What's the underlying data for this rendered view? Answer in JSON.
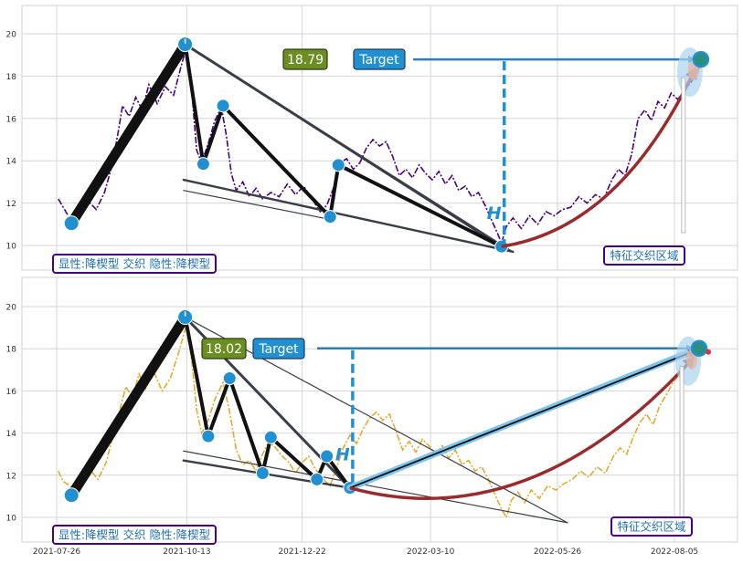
{
  "chart_data": [
    {
      "type": "line",
      "panel": "top",
      "title": "",
      "xlabel": "",
      "ylabel": "",
      "ylim": [
        9,
        21.2
      ],
      "yticks": [
        10,
        12,
        14,
        16,
        18,
        20
      ],
      "grid": true,
      "x_axis_labels_shown": false,
      "series": [
        {
          "style": "dash-dot",
          "color": "#4b0082",
          "points": [
            [
              "2021-07-27",
              12.2
            ],
            [
              "2021-07-30",
              11.8
            ],
            [
              "2021-08-02",
              11.4
            ],
            [
              "2021-08-06",
              11.1
            ],
            [
              "2021-08-10",
              11.6
            ],
            [
              "2021-08-14",
              12.1
            ],
            [
              "2021-08-19",
              11.7
            ],
            [
              "2021-08-24",
              12.5
            ],
            [
              "2021-08-28",
              13.6
            ],
            [
              "2021-09-01",
              15.2
            ],
            [
              "2021-09-04",
              16.6
            ],
            [
              "2021-09-08",
              16.1
            ],
            [
              "2021-09-12",
              17.0
            ],
            [
              "2021-09-16",
              16.4
            ],
            [
              "2021-09-20",
              17.6
            ],
            [
              "2021-09-25",
              16.7
            ],
            [
              "2021-09-30",
              17.5
            ],
            [
              "2021-10-05",
              17.1
            ],
            [
              "2021-10-10",
              18.6
            ],
            [
              "2021-10-13",
              19.4
            ],
            [
              "2021-10-16",
              17.3
            ],
            [
              "2021-10-19",
              14.5
            ],
            [
              "2021-10-22",
              13.9
            ],
            [
              "2021-10-26",
              14.8
            ],
            [
              "2021-10-30",
              15.9
            ],
            [
              "2021-11-03",
              16.5
            ],
            [
              "2021-11-06",
              15.2
            ],
            [
              "2021-11-09",
              13.4
            ],
            [
              "2021-11-12",
              12.6
            ],
            [
              "2021-11-16",
              13.0
            ],
            [
              "2021-11-20",
              12.3
            ],
            [
              "2021-11-24",
              12.7
            ],
            [
              "2021-11-28",
              12.2
            ],
            [
              "2021-12-03",
              12.5
            ],
            [
              "2021-12-08",
              12.3
            ],
            [
              "2021-12-13",
              12.9
            ],
            [
              "2021-12-18",
              12.4
            ],
            [
              "2021-12-23",
              12.8
            ],
            [
              "2021-12-28",
              12.2
            ],
            [
              "2022-01-02",
              11.6
            ],
            [
              "2022-01-06",
              11.9
            ],
            [
              "2022-01-10",
              12.7
            ],
            [
              "2022-01-14",
              13.9
            ],
            [
              "2022-01-18",
              14.1
            ],
            [
              "2022-01-22",
              13.6
            ],
            [
              "2022-01-26",
              13.9
            ],
            [
              "2022-01-30",
              14.6
            ],
            [
              "2022-02-03",
              15.0
            ],
            [
              "2022-02-07",
              14.7
            ],
            [
              "2022-02-11",
              14.9
            ],
            [
              "2022-02-15",
              14.2
            ],
            [
              "2022-02-19",
              13.3
            ],
            [
              "2022-02-23",
              13.6
            ],
            [
              "2022-02-27",
              13.2
            ],
            [
              "2022-03-03",
              13.8
            ],
            [
              "2022-03-07",
              13.4
            ],
            [
              "2022-03-11",
              13.1
            ],
            [
              "2022-03-15",
              13.5
            ],
            [
              "2022-03-19",
              12.9
            ],
            [
              "2022-03-23",
              13.3
            ],
            [
              "2022-03-27",
              12.6
            ],
            [
              "2022-03-31",
              12.8
            ],
            [
              "2022-04-04",
              12.3
            ],
            [
              "2022-04-08",
              12.5
            ],
            [
              "2022-04-12",
              11.9
            ],
            [
              "2022-04-16",
              11.2
            ],
            [
              "2022-04-20",
              10.5
            ],
            [
              "2022-04-22",
              10.1
            ],
            [
              "2022-04-25",
              10.9
            ],
            [
              "2022-04-29",
              11.3
            ],
            [
              "2022-05-04",
              10.8
            ],
            [
              "2022-05-09",
              11.4
            ],
            [
              "2022-05-14",
              11.0
            ],
            [
              "2022-05-19",
              11.6
            ],
            [
              "2022-05-24",
              11.4
            ],
            [
              "2022-05-29",
              11.7
            ],
            [
              "2022-06-03",
              11.8
            ],
            [
              "2022-06-08",
              12.3
            ],
            [
              "2022-06-13",
              12.0
            ],
            [
              "2022-06-18",
              12.4
            ],
            [
              "2022-06-23",
              12.2
            ],
            [
              "2022-06-28",
              13.1
            ],
            [
              "2022-07-02",
              13.6
            ],
            [
              "2022-07-06",
              13.3
            ],
            [
              "2022-07-10",
              14.3
            ],
            [
              "2022-07-14",
              16.0
            ],
            [
              "2022-07-18",
              16.4
            ],
            [
              "2022-07-22",
              15.9
            ],
            [
              "2022-07-26",
              16.8
            ],
            [
              "2022-07-30",
              16.5
            ],
            [
              "2022-08-03",
              17.2
            ],
            [
              "2022-08-07",
              16.9
            ],
            [
              "2022-08-11",
              17.3
            ],
            [
              "2022-08-15",
              17.7
            ],
            [
              "2022-08-19",
              18.2
            ],
            [
              "2022-08-21",
              18.6
            ]
          ]
        }
      ],
      "pivots": [
        {
          "date": "2021-08-04",
          "value": 11.05
        },
        {
          "date": "2021-10-12",
          "value": 19.5
        },
        {
          "date": "2021-10-23",
          "value": 13.85
        },
        {
          "date": "2021-11-04",
          "value": 16.6
        },
        {
          "date": "2022-01-08",
          "value": 11.35
        },
        {
          "date": "2022-01-13",
          "value": 13.8
        },
        {
          "date": "2022-04-22",
          "value": 9.95
        }
      ],
      "trendlines": [
        {
          "from": [
            "2021-10-12",
            19.5
          ],
          "to": [
            "2022-04-22",
            9.95
          ],
          "width": 3
        },
        {
          "from": [
            "2021-10-12",
            19.5
          ],
          "to": [
            "2022-04-29",
            9.7
          ],
          "width": 1.2
        },
        {
          "from": [
            "2021-10-11",
            13.1
          ],
          "to": [
            "2022-04-29",
            9.7
          ],
          "width": 2.4
        },
        {
          "from": [
            "2021-10-11",
            12.6
          ],
          "to": [
            "2022-01-10",
            11.2
          ],
          "width": 1.2
        }
      ],
      "target_label": "Target",
      "current_value_label": "18.79",
      "breakout_marker_label": "H",
      "breakout_date": "2022-04-22",
      "target_value": 18.79,
      "target_date": "2022-08-21",
      "annotation_left": "显性:降楔型 交织 隐性:降楔型",
      "annotation_right": "特征交织区域"
    },
    {
      "type": "line",
      "panel": "bottom",
      "title": "",
      "xlabel": "",
      "ylabel": "",
      "ylim": [
        9.0,
        21.2
      ],
      "yticks": [
        10,
        12,
        14,
        16,
        18,
        20
      ],
      "grid": true,
      "x_axis_labels_shown": true,
      "xticks": [
        "2021-07-26",
        "2021-10-13",
        "2021-12-22",
        "2022-03-10",
        "2022-05-26",
        "2022-08-05"
      ],
      "series": [
        {
          "style": "dash-dot",
          "color": "#e8a92a",
          "points": [
            [
              "2021-07-27",
              12.2
            ],
            [
              "2021-07-30",
              11.7
            ],
            [
              "2021-08-03",
              11.5
            ],
            [
              "2021-08-07",
              11.2
            ],
            [
              "2021-08-11",
              11.7
            ],
            [
              "2021-08-15",
              12.3
            ],
            [
              "2021-08-20",
              11.8
            ],
            [
              "2021-08-25",
              12.6
            ],
            [
              "2021-08-29",
              13.8
            ],
            [
              "2021-09-02",
              15.0
            ],
            [
              "2021-09-06",
              16.2
            ],
            [
              "2021-09-10",
              15.7
            ],
            [
              "2021-09-14",
              16.8
            ],
            [
              "2021-09-18",
              16.1
            ],
            [
              "2021-09-23",
              16.9
            ],
            [
              "2021-09-28",
              16.0
            ],
            [
              "2021-10-03",
              16.6
            ],
            [
              "2021-10-08",
              17.8
            ],
            [
              "2021-10-13",
              19.2
            ],
            [
              "2021-10-16",
              17.4
            ],
            [
              "2021-10-19",
              15.1
            ],
            [
              "2021-10-22",
              14.0
            ],
            [
              "2021-10-26",
              14.6
            ],
            [
              "2021-10-30",
              15.6
            ],
            [
              "2021-11-04",
              16.4
            ],
            [
              "2021-11-08",
              15.0
            ],
            [
              "2021-11-12",
              13.2
            ],
            [
              "2021-11-16",
              12.5
            ],
            [
              "2021-11-20",
              12.7
            ],
            [
              "2021-11-24",
              12.2
            ],
            [
              "2021-11-28",
              13.0
            ],
            [
              "2021-12-02",
              13.6
            ],
            [
              "2021-12-06",
              13.3
            ],
            [
              "2021-12-10",
              12.9
            ],
            [
              "2021-12-14",
              12.6
            ],
            [
              "2021-12-18",
              12.1
            ],
            [
              "2021-12-22",
              12.6
            ],
            [
              "2021-12-26",
              12.9
            ],
            [
              "2021-12-30",
              12.3
            ],
            [
              "2022-01-04",
              11.8
            ],
            [
              "2022-01-08",
              11.5
            ],
            [
              "2022-01-12",
              12.4
            ],
            [
              "2022-01-16",
              13.3
            ],
            [
              "2022-01-20",
              13.9
            ],
            [
              "2022-01-24",
              13.5
            ],
            [
              "2022-01-28",
              14.2
            ],
            [
              "2022-02-01",
              14.7
            ],
            [
              "2022-02-05",
              15.0
            ],
            [
              "2022-02-09",
              14.6
            ],
            [
              "2022-02-13",
              14.9
            ],
            [
              "2022-02-17",
              14.1
            ],
            [
              "2022-02-21",
              13.2
            ],
            [
              "2022-02-25",
              13.6
            ],
            [
              "2022-03-01",
              13.1
            ],
            [
              "2022-03-05",
              13.7
            ],
            [
              "2022-03-09",
              13.4
            ],
            [
              "2022-03-13",
              13.0
            ],
            [
              "2022-03-17",
              13.4
            ],
            [
              "2022-03-21",
              12.8
            ],
            [
              "2022-03-25",
              13.2
            ],
            [
              "2022-03-29",
              12.5
            ],
            [
              "2022-04-02",
              12.7
            ],
            [
              "2022-04-06",
              12.2
            ],
            [
              "2022-04-10",
              12.4
            ],
            [
              "2022-04-14",
              11.8
            ],
            [
              "2022-04-18",
              11.1
            ],
            [
              "2022-04-22",
              10.4
            ],
            [
              "2022-04-25",
              10.0
            ],
            [
              "2022-04-28",
              10.8
            ],
            [
              "2022-05-02",
              11.2
            ],
            [
              "2022-05-06",
              10.7
            ],
            [
              "2022-05-10",
              11.3
            ],
            [
              "2022-05-15",
              10.9
            ],
            [
              "2022-05-20",
              11.5
            ],
            [
              "2022-05-25",
              11.3
            ],
            [
              "2022-05-30",
              11.6
            ],
            [
              "2022-06-04",
              11.8
            ],
            [
              "2022-06-09",
              12.2
            ],
            [
              "2022-06-14",
              11.9
            ],
            [
              "2022-06-19",
              12.4
            ],
            [
              "2022-06-24",
              12.1
            ],
            [
              "2022-06-29",
              12.9
            ],
            [
              "2022-07-03",
              13.3
            ],
            [
              "2022-07-07",
              13.0
            ],
            [
              "2022-07-11",
              13.8
            ],
            [
              "2022-07-15",
              14.5
            ],
            [
              "2022-07-19",
              14.9
            ],
            [
              "2022-07-23",
              14.4
            ],
            [
              "2022-07-27",
              15.3
            ],
            [
              "2022-07-31",
              15.8
            ],
            [
              "2022-08-04",
              16.4
            ],
            [
              "2022-08-08",
              16.8
            ],
            [
              "2022-08-12",
              17.1
            ],
            [
              "2022-08-16",
              17.6
            ],
            [
              "2022-08-20",
              18.0
            ]
          ]
        }
      ],
      "pivots": [
        {
          "date": "2021-08-04",
          "value": 11.05
        },
        {
          "date": "2021-10-12",
          "value": 19.5
        },
        {
          "date": "2021-10-26",
          "value": 13.85
        },
        {
          "date": "2021-11-08",
          "value": 16.6
        },
        {
          "date": "2021-11-28",
          "value": 12.1
        },
        {
          "date": "2021-12-03",
          "value": 13.8
        },
        {
          "date": "2021-12-31",
          "value": 11.8
        },
        {
          "date": "2022-01-06",
          "value": 12.9
        },
        {
          "date": "2022-01-20",
          "value": 11.4
        }
      ],
      "trendlines": [
        {
          "from": [
            "2021-10-12",
            19.5
          ],
          "to": [
            "2022-01-20",
            11.4
          ],
          "width": 3
        },
        {
          "from": [
            "2021-10-12",
            19.5
          ],
          "to": [
            "2022-06-01",
            9.75
          ],
          "width": 1.2
        },
        {
          "from": [
            "2021-10-11",
            13.15
          ],
          "to": [
            "2022-06-01",
            9.75
          ],
          "width": 1.2
        },
        {
          "from": [
            "2021-10-11",
            12.7
          ],
          "to": [
            "2022-01-20",
            11.4
          ],
          "width": 2.4
        }
      ],
      "target_label": "Target",
      "current_value_label": "18.02",
      "breakout_marker_label": "H",
      "breakout_date": "2022-01-20",
      "target_value": 18.02,
      "target_date": "2022-08-20",
      "annotation_left": "显性:降楔型 交织 隐性:降楔型",
      "annotation_right": "特征交织区域"
    }
  ]
}
